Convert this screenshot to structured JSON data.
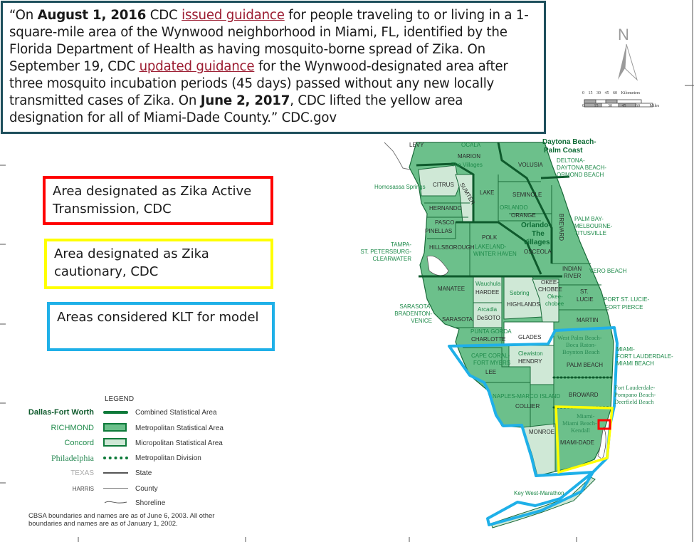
{
  "quote": {
    "open": "“On ",
    "date1": "August 1, 2016",
    "p1": " CDC ",
    "link1": "issued guidance",
    "p2": " for people traveling to or living in a 1-square-mile area of the Wynwood neighborhood in Miami, FL, identified by the Florida Department of Health as having mosquito-borne spread of Zika. On September 19, CDC ",
    "link2": "updated guidance",
    "p3": " for the Wynwood-designated area after three mosquito incubation periods (45 days) passed without any new locally transmitted cases of Zika. On ",
    "date2": "June 2, 2017",
    "p4": ", CDC lifted the yellow area designation for all of Miami-Dade County.”  CDC.gov"
  },
  "key": {
    "red": "Area designated as Zika Active Transmission, CDC",
    "yellow": "Area designated as Zika cautionary, CDC",
    "blue": "Areas considered KLT for model"
  },
  "colors": {
    "red": "#ff0000",
    "yellow": "#ffff00",
    "blue": "#1fb0e8",
    "msa": "#6cc08b",
    "micro": "#cfe8d6",
    "border": "#1e4f5c"
  },
  "north": "N",
  "scale": {
    "km": "0 15 30 45 60 Kilometers",
    "miles": "0 15 30 45 60 Miles"
  },
  "legend": {
    "title": "LEGEND",
    "rows": [
      {
        "name": "Dallas-Fort Worth",
        "desc": "Combined Statistical Area"
      },
      {
        "name": "RICHMOND",
        "desc": "Metropolitan Statistical Area"
      },
      {
        "name": "Concord",
        "desc": "Micropolitan Statistical Area"
      },
      {
        "name": "Philadelphia",
        "desc": "Metropolitan Division"
      },
      {
        "name": "TEXAS",
        "desc": "State"
      },
      {
        "name": "HARRIS",
        "desc": "County"
      },
      {
        "name": "",
        "desc": "Shoreline"
      }
    ],
    "note": "CBSA boundaries and names are as of June 6, 2003.  All other boundaries and names are as of January 1, 2002."
  },
  "map": {
    "labels": [
      "LEVY",
      "OCALA",
      "MARION",
      "The Villages",
      "VOLUSIA",
      "DELTONA-",
      "DAYTONA BEACH-",
      "ORMOND BEACH",
      "Daytona Beach-",
      "Palm Coast",
      "Homosassa Springs",
      "CITRUS",
      "SUMTER",
      "LAKE",
      "SEMINOLE",
      "ORLANDO",
      "ORANGE",
      "BREVARD",
      "PALM BAY-",
      "MELBOURNE-",
      "TITUSVILLE",
      "HERNANDO",
      "PASCO",
      "PINELLAS",
      "POLK",
      "LAKELAND-",
      "WINTER HAVEN",
      "Orlando-",
      "The",
      "Villages",
      "OSCEOLA",
      "TAMPA-",
      "ST. PETERSBURG-",
      "CLEARWATER",
      "HILLSBOROUGH",
      "INDIAN",
      "RIVER",
      "VERO BEACH",
      "MANATEE",
      "Wauchula",
      "HARDEE",
      "Sebring",
      "HIGHLANDS",
      "OKEE-",
      "CHOBEE",
      "Okee-",
      "chobee",
      "ST.",
      "LUCIE",
      "PORT ST. LUCIE-",
      "FORT PIERCE",
      "SARASOTA-",
      "BRADENTON-",
      "VENICE",
      "SARASOTA",
      "Arcadia",
      "DeSOTO",
      "MARTIN",
      "PUNTA GORDA",
      "CHARLOTTE",
      "GLADES",
      "West Palm Beach-",
      "Boca Raton-",
      "Boynton Beach",
      "MIAMI-",
      "FORT LAUDERDALE-",
      "MIAMI BEACH",
      "Clewiston",
      "HENDRY",
      "CAPE CORAL-",
      "FORT MYERS",
      "LEE",
      "PALM BEACH",
      "NAPLES-MARCO ISLAND",
      "COLLIER",
      "BROWARD",
      "Fort Lauderdale-",
      "Pompano Beach-",
      "Deerfield Beach",
      "Miami-",
      "Miami Beach-",
      "Kendall",
      "MIAMI-DADE",
      "MONROE",
      "Key West-Marathon"
    ]
  }
}
